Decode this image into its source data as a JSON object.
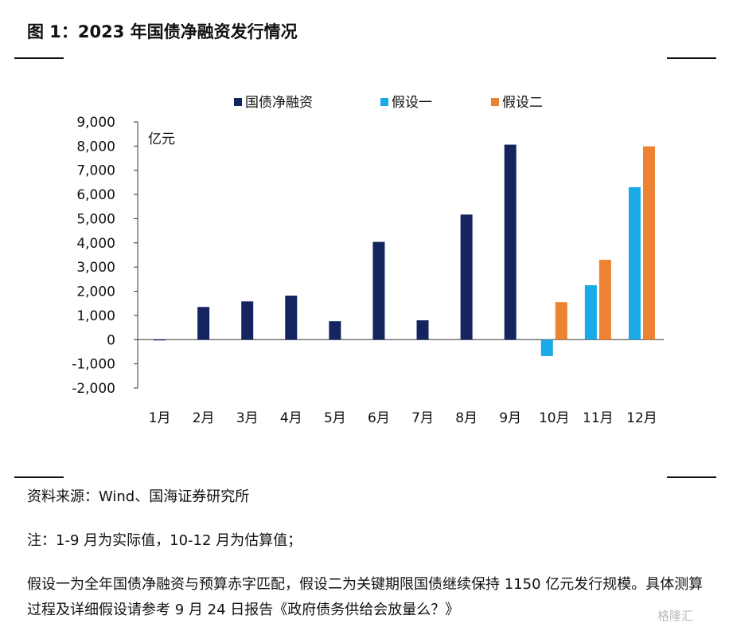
{
  "figure_title": "图 1：2023 年国债净融资发行情况",
  "source": "资料来源：Wind、国海证券研究所",
  "note": "注：1-9 月为实际值，10-12 月为估算值；",
  "assumption": "假设一为全年国债净融资与预算赤字匹配，假设二为关键期限国债继续保持 1150 亿元发行规模。具体测算过程及详细假设请参考 9 月 24 日报告《政府债务供给会放量么？》",
  "watermark": "格隆汇",
  "chart_data": {
    "type": "bar",
    "title": "",
    "ylabel": "亿元",
    "xlabel": "",
    "ylim": [
      -2000,
      9000
    ],
    "yticks": [
      -2000,
      -1000,
      0,
      1000,
      2000,
      3000,
      4000,
      5000,
      6000,
      7000,
      8000,
      9000
    ],
    "ytick_labels": [
      "-2,000",
      "-1,000",
      "0",
      "1,000",
      "2,000",
      "3,000",
      "4,000",
      "5,000",
      "6,000",
      "7,000",
      "8,000",
      "9,000"
    ],
    "categories": [
      "1月",
      "2月",
      "3月",
      "4月",
      "5月",
      "6月",
      "7月",
      "8月",
      "9月",
      "10月",
      "11月",
      "12月"
    ],
    "legend_position": "top",
    "grid": false,
    "series": [
      {
        "name": "国债净融资",
        "color": "#14245e",
        "values": [
          0,
          1350,
          1580,
          1820,
          760,
          4040,
          800,
          5170,
          8060,
          null,
          null,
          null
        ]
      },
      {
        "name": "假设一",
        "color": "#1aaae8",
        "values": [
          null,
          null,
          null,
          null,
          null,
          null,
          null,
          null,
          null,
          -680,
          2250,
          6300
        ]
      },
      {
        "name": "假设二",
        "color": "#ee8233",
        "values": [
          null,
          null,
          null,
          null,
          null,
          null,
          null,
          null,
          null,
          1550,
          3300,
          7990
        ]
      }
    ]
  }
}
